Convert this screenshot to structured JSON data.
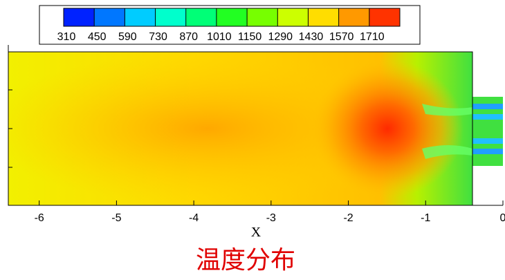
{
  "chart_data": {
    "type": "contour",
    "xlabel": "X",
    "caption": "温度分布",
    "xlim": [
      -6.4,
      0
    ],
    "xticks": [
      -6,
      -5,
      -4,
      -3,
      -2,
      -1,
      0
    ],
    "colorbar": {
      "ticks": [
        310,
        450,
        590,
        730,
        870,
        1010,
        1150,
        1290,
        1430,
        1570,
        1710
      ],
      "colors": [
        "#0022ff",
        "#0077ff",
        "#00ccff",
        "#00ffcc",
        "#00ff77",
        "#22ff22",
        "#77ff00",
        "#ccff00",
        "#ffdd00",
        "#ff9900",
        "#ff3300"
      ]
    }
  }
}
